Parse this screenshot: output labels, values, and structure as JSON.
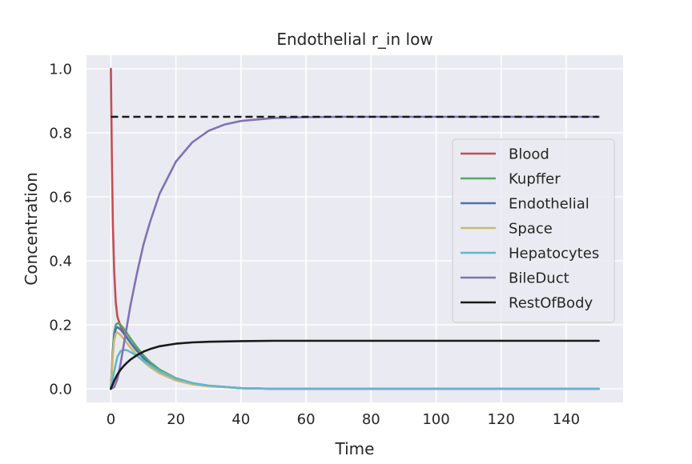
{
  "chart_data": {
    "type": "line",
    "title": "Endothelial r_in low",
    "xlabel": "Time",
    "ylabel": "Concentration",
    "xlim": [
      -7.5,
      157.5
    ],
    "ylim": [
      -0.0425,
      1.0425
    ],
    "xticks": [
      0,
      20,
      40,
      60,
      80,
      100,
      120,
      140
    ],
    "xtick_labels": [
      "0",
      "20",
      "40",
      "60",
      "80",
      "100",
      "120",
      "140"
    ],
    "yticks": [
      0.0,
      0.2,
      0.4,
      0.6,
      0.8,
      1.0
    ],
    "ytick_labels": [
      "0.0",
      "0.2",
      "0.4",
      "0.6",
      "0.8",
      "1.0"
    ],
    "grid": true,
    "legend_position": "center-right",
    "series": [
      {
        "name": "Blood",
        "color": "#c44e52",
        "dash": "solid",
        "x": [
          0,
          0.3,
          0.6,
          1,
          1.5,
          2,
          3,
          4,
          5,
          6,
          8,
          10,
          12,
          15,
          20,
          25,
          30,
          40,
          50,
          60,
          80,
          100,
          150
        ],
        "y": [
          1.0,
          0.72,
          0.52,
          0.37,
          0.27,
          0.225,
          0.195,
          0.175,
          0.16,
          0.145,
          0.12,
          0.097,
          0.077,
          0.055,
          0.03,
          0.017,
          0.009,
          0.002,
          0.0,
          0.0,
          0.0,
          0.0,
          0.0
        ]
      },
      {
        "name": "Kupffer",
        "color": "#55a868",
        "dash": "solid",
        "x": [
          0,
          0.5,
          1,
          1.5,
          2,
          3,
          4,
          5,
          6,
          8,
          10,
          12,
          15,
          20,
          25,
          30,
          40,
          50,
          60,
          80,
          100,
          150
        ],
        "y": [
          0.0,
          0.11,
          0.175,
          0.2,
          0.205,
          0.2,
          0.188,
          0.173,
          0.158,
          0.13,
          0.105,
          0.084,
          0.06,
          0.033,
          0.018,
          0.01,
          0.002,
          0.0,
          0.0,
          0.0,
          0.0,
          0.0
        ]
      },
      {
        "name": "Endothelial",
        "color": "#4c72b0",
        "dash": "solid",
        "x": [
          0,
          0.5,
          1,
          1.5,
          2,
          3,
          4,
          5,
          6,
          8,
          10,
          12,
          15,
          20,
          25,
          30,
          40,
          50,
          60,
          80,
          100,
          150
        ],
        "y": [
          0.0,
          0.1,
          0.163,
          0.187,
          0.193,
          0.185,
          0.172,
          0.158,
          0.144,
          0.118,
          0.096,
          0.076,
          0.054,
          0.03,
          0.016,
          0.009,
          0.002,
          0.0,
          0.0,
          0.0,
          0.0,
          0.0
        ]
      },
      {
        "name": "Space",
        "color": "#ccb974",
        "dash": "solid",
        "x": [
          0,
          0.5,
          1,
          1.5,
          2,
          3,
          4,
          5,
          6,
          8,
          10,
          12,
          15,
          20,
          25,
          30,
          40,
          50,
          60,
          80,
          100,
          150
        ],
        "y": [
          0.0,
          0.09,
          0.15,
          0.172,
          0.176,
          0.168,
          0.155,
          0.142,
          0.129,
          0.105,
          0.085,
          0.068,
          0.048,
          0.026,
          0.014,
          0.008,
          0.002,
          0.0,
          0.0,
          0.0,
          0.0,
          0.0
        ]
      },
      {
        "name": "Hepatocytes",
        "color": "#64b5cd",
        "dash": "solid",
        "x": [
          0,
          1,
          2,
          3,
          4,
          5,
          6,
          8,
          10,
          12,
          15,
          20,
          25,
          30,
          40,
          50,
          60,
          80,
          100,
          150
        ],
        "y": [
          0.0,
          0.055,
          0.1,
          0.118,
          0.122,
          0.12,
          0.115,
          0.103,
          0.088,
          0.074,
          0.055,
          0.032,
          0.018,
          0.01,
          0.002,
          0.0,
          0.0,
          0.0,
          0.0,
          0.0
        ]
      },
      {
        "name": "BileDuct",
        "color": "#8172b3",
        "dash": "solid",
        "x": [
          0,
          1,
          2,
          3,
          4,
          5,
          6,
          8,
          10,
          12,
          15,
          20,
          25,
          30,
          35,
          40,
          50,
          60,
          70,
          80,
          100,
          120,
          150
        ],
        "y": [
          0.0,
          0.005,
          0.03,
          0.08,
          0.14,
          0.2,
          0.26,
          0.36,
          0.45,
          0.52,
          0.61,
          0.71,
          0.77,
          0.806,
          0.826,
          0.837,
          0.846,
          0.849,
          0.85,
          0.85,
          0.85,
          0.85,
          0.85
        ]
      },
      {
        "name": "RestOfBody",
        "color": "#1a1a1a",
        "dash": "solid",
        "x": [
          0,
          1,
          2,
          3,
          4,
          5,
          6,
          8,
          10,
          12,
          15,
          20,
          25,
          30,
          40,
          50,
          60,
          80,
          100,
          150
        ],
        "y": [
          0.0,
          0.025,
          0.045,
          0.06,
          0.072,
          0.082,
          0.091,
          0.105,
          0.116,
          0.124,
          0.133,
          0.141,
          0.145,
          0.147,
          0.149,
          0.15,
          0.15,
          0.15,
          0.15,
          0.15
        ]
      },
      {
        "color": "#1a1a1a",
        "dash": "dashed",
        "x": [
          0,
          150
        ],
        "y": [
          0.85,
          0.85
        ]
      }
    ]
  }
}
